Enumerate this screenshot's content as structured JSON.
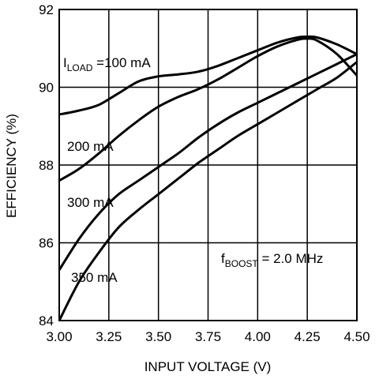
{
  "chart_data": {
    "type": "line",
    "xlabel": "INPUT VOLTAGE (V)",
    "ylabel": "EFFICIENCY (%)",
    "xlim": [
      3.0,
      4.5
    ],
    "ylim": [
      84,
      92
    ],
    "x_ticks": [
      "3.00",
      "3.25",
      "3.50",
      "3.75",
      "4.00",
      "4.25",
      "4.50"
    ],
    "y_ticks": [
      "84",
      "86",
      "88",
      "90",
      "92"
    ],
    "grid": true,
    "annotations": {
      "load_prefix": "I",
      "load_sub": "LOAD",
      "load_suffix": " =100 mA",
      "s200": "200 mA",
      "s300": "300 mA",
      "s350": "350 mA",
      "boost_prefix": "f",
      "boost_sub": "BOOST",
      "boost_suffix": " = 2.0 MHz"
    },
    "series": [
      {
        "name": "100 mA",
        "x": [
          3.0,
          3.1,
          3.2,
          3.3,
          3.4,
          3.5,
          3.6,
          3.7,
          3.8,
          3.9,
          4.0,
          4.1,
          4.2,
          4.25,
          4.3,
          4.4,
          4.5
        ],
        "y": [
          89.3,
          89.4,
          89.55,
          89.85,
          90.15,
          90.28,
          90.33,
          90.4,
          90.55,
          90.75,
          90.95,
          91.15,
          91.28,
          91.3,
          91.28,
          91.1,
          90.85
        ]
      },
      {
        "name": "200 mA",
        "x": [
          3.0,
          3.1,
          3.2,
          3.3,
          3.4,
          3.5,
          3.6,
          3.7,
          3.8,
          3.9,
          4.0,
          4.1,
          4.2,
          4.25,
          4.3,
          4.4,
          4.5
        ],
        "y": [
          87.6,
          87.9,
          88.3,
          88.75,
          89.15,
          89.5,
          89.75,
          89.95,
          90.2,
          90.5,
          90.8,
          91.05,
          91.22,
          91.25,
          91.2,
          90.85,
          90.3
        ]
      },
      {
        "name": "300 mA",
        "x": [
          3.0,
          3.1,
          3.2,
          3.3,
          3.4,
          3.5,
          3.6,
          3.7,
          3.8,
          3.9,
          4.0,
          4.1,
          4.2,
          4.3,
          4.4,
          4.5
        ],
        "y": [
          85.3,
          86.1,
          86.75,
          87.25,
          87.6,
          87.95,
          88.3,
          88.7,
          89.05,
          89.35,
          89.6,
          89.85,
          90.1,
          90.35,
          90.6,
          90.85
        ]
      },
      {
        "name": "350 mA",
        "x": [
          3.0,
          3.1,
          3.2,
          3.3,
          3.4,
          3.5,
          3.6,
          3.7,
          3.8,
          3.9,
          4.0,
          4.1,
          4.2,
          4.3,
          4.4,
          4.5
        ],
        "y": [
          84.0,
          85.0,
          85.75,
          86.4,
          86.85,
          87.25,
          87.65,
          88.05,
          88.4,
          88.75,
          89.05,
          89.35,
          89.65,
          89.95,
          90.25,
          90.65
        ]
      }
    ]
  }
}
